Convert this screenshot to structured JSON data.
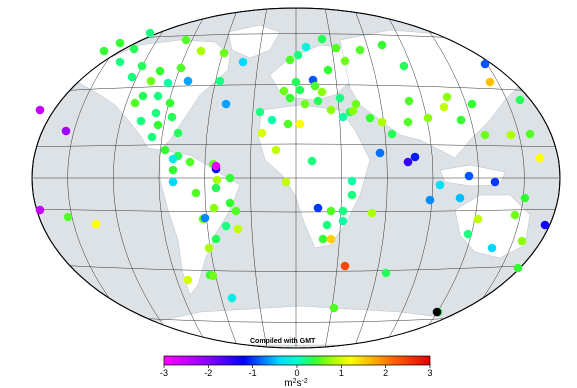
{
  "map": {
    "credit": "Compiled with GMT",
    "ocean_color": "#dde2e6",
    "land_color": "#ffffff",
    "grid_color": "#333333",
    "projection": "Winkel-Tripel style world map",
    "colorbar": {
      "ticks": [
        "-3",
        "-2",
        "-1",
        "0",
        "1",
        "2",
        "3"
      ],
      "unit_base": "m",
      "unit_sup1": "2",
      "unit_mid": "s",
      "unit_sup2": "-2",
      "range": [
        -3,
        3
      ],
      "stops": [
        [
          -3,
          "#ff00ff"
        ],
        [
          -2,
          "#8a00ff"
        ],
        [
          -1.2,
          "#0000ff"
        ],
        [
          -0.8,
          "#0070ff"
        ],
        [
          -0.4,
          "#00d8ff"
        ],
        [
          0,
          "#00ffcc"
        ],
        [
          0.4,
          "#33ff33"
        ],
        [
          0.8,
          "#aaff00"
        ],
        [
          1.2,
          "#ffff00"
        ],
        [
          1.6,
          "#ffc000"
        ],
        [
          2.2,
          "#ff6000"
        ],
        [
          3,
          "#e00000"
        ]
      ]
    },
    "stations": [
      [
        0.4,
        0.07
      ],
      [
        0.3,
        0.12
      ],
      [
        0.2,
        0.15
      ],
      [
        0.5,
        0.1
      ],
      [
        0.8,
        0.1
      ],
      [
        0.6,
        0.09
      ],
      [
        -0.4,
        0.07
      ],
      [
        0.4,
        0.14
      ],
      [
        0.2,
        0.18
      ],
      [
        0.3,
        0.22
      ],
      [
        0.4,
        0.18
      ],
      [
        0.5,
        0.2
      ],
      [
        0.2,
        0.26
      ],
      [
        0.6,
        0.23
      ],
      [
        0.1,
        0.3
      ],
      [
        -0.6,
        0.3
      ],
      [
        0.3,
        0.27
      ],
      [
        0.2,
        0.3
      ],
      [
        0.4,
        0.33
      ],
      [
        0.5,
        0.3
      ],
      [
        0.2,
        0.36
      ],
      [
        0.3,
        0.37
      ],
      [
        0.2,
        0.4
      ],
      [
        0.4,
        0.4
      ],
      [
        0.3,
        0.43
      ],
      [
        0.2,
        0.44
      ],
      [
        0.4,
        0.46
      ],
      [
        0.3,
        0.5
      ],
      [
        0.5,
        0.49
      ],
      [
        0.4,
        0.55
      ],
      [
        0.6,
        0.52
      ],
      [
        0.4,
        0.58
      ],
      [
        0.3,
        0.62
      ],
      [
        0.5,
        0.6
      ],
      [
        0.4,
        0.64
      ],
      [
        0.7,
        0.6
      ],
      [
        0.5,
        0.67
      ],
      [
        0.6,
        0.7
      ],
      [
        0.2,
        0.72
      ],
      [
        0.3,
        0.68
      ],
      [
        0.8,
        0.66
      ],
      [
        0.4,
        0.75
      ],
      [
        1.0,
        0.58
      ],
      [
        0.9,
        0.72
      ],
      [
        1.2,
        0.62
      ],
      [
        0.2,
        0.8
      ],
      [
        0.1,
        0.84
      ],
      [
        0.9,
        0.79
      ],
      [
        -2.5,
        0.9
      ],
      [
        -2.5,
        0.91
      ],
      [
        0.1,
        0.93
      ],
      [
        0.2,
        0.96
      ],
      [
        -1.0,
        1.0
      ],
      [
        0.5,
        0.97
      ],
      [
        0.2,
        0.96
      ],
      [
        0.1,
        0.99
      ],
      [
        0.8,
        1.0
      ],
      [
        0.2,
        0.9
      ],
      [
        0.4,
        1.04
      ],
      [
        1.5,
        1.0
      ],
      [
        -0.1,
        0.08
      ],
      [
        0.3,
        0.14
      ],
      [
        0.5,
        0.2
      ],
      [
        0.6,
        0.26
      ],
      [
        0.5,
        0.3
      ],
      [
        0.4,
        0.36
      ],
      [
        0.3,
        0.4
      ],
      [
        0.5,
        0.45
      ],
      [
        0.7,
        0.5
      ],
      [
        0.4,
        0.55
      ],
      [
        0.6,
        0.6
      ],
      [
        0.8,
        0.64
      ],
      [
        0.5,
        0.7
      ],
      [
        -0.8,
        0.74
      ],
      [
        -1.5,
        0.78
      ],
      [
        -1.1,
        0.82
      ],
      [
        -0.3,
        0.86
      ],
      [
        -0.7,
        0.9
      ],
      [
        -0.9,
        0.96
      ],
      [
        -0.5,
        1.02
      ],
      [
        0.4,
        0.84
      ],
      [
        0.9,
        0.8
      ],
      [
        0.6,
        0.88
      ],
      [
        0.2,
        0.92
      ],
      [
        -0.4,
        0.96
      ],
      [
        0.7,
        1.02
      ],
      [
        1.2,
        1.05
      ],
      [
        2.4,
        1.08
      ],
      [
        0.3,
        0.9
      ],
      [
        -0.2,
        0.84
      ],
      [
        0.5,
        0.68
      ],
      [
        0.3,
        0.44
      ],
      [
        -0.2,
        0.28
      ],
      [
        -1.2,
        0.36
      ],
      [
        0.2,
        0.24
      ],
      [
        -0.6,
        0.46
      ],
      [
        0.3,
        0.16
      ],
      [
        -0.9,
        0.92
      ],
      [
        0.4,
        0.38
      ],
      [
        0.6,
        0.32
      ],
      [
        0.3,
        0.68
      ],
      [
        0.5,
        0.73
      ],
      [
        0.7,
        0.77
      ],
      [
        0.4,
        0.81
      ],
      [
        0.6,
        0.85
      ],
      [
        0.2,
        0.89
      ],
      [
        0.1,
        0.93
      ],
      [
        0.5,
        0.97
      ],
      [
        0.3,
        1.01
      ],
      [
        0.7,
        1.05
      ],
      [
        0.2,
        1.09
      ],
      [
        0.6,
        1.13
      ],
      [
        0.4,
        1.17
      ],
      [
        0.8,
        1.21
      ],
      [
        0.3,
        1.25
      ],
      [
        0.5,
        1.29
      ],
      [
        0.7,
        1.33
      ],
      [
        0.9,
        1.37
      ],
      [
        0.4,
        1.41
      ],
      [
        1.6,
        1.45
      ],
      [
        -0.9,
        1.5
      ],
      [
        0.3,
        1.55
      ],
      [
        -1.0,
        1.6
      ],
      [
        -1.3,
        1.65
      ],
      [
        0.4,
        1.7
      ],
      [
        0.9,
        1.75
      ],
      [
        -0.7,
        1.8
      ],
      [
        0.5,
        1.85
      ],
      [
        1.2,
        1.9
      ],
      [
        -2.2,
        1.95
      ],
      [
        0.8,
        2.0
      ],
      [
        -0.4,
        2.05
      ],
      [
        0.6,
        2.1
      ],
      [
        1.0,
        2.15
      ],
      [
        0.3,
        2.2
      ],
      [
        0.7,
        2.25
      ],
      [
        0.2,
        2.3
      ],
      [
        0.5,
        2.35
      ],
      [
        -2.8,
        2.4
      ],
      [
        -3.0,
        2.45
      ]
    ]
  }
}
